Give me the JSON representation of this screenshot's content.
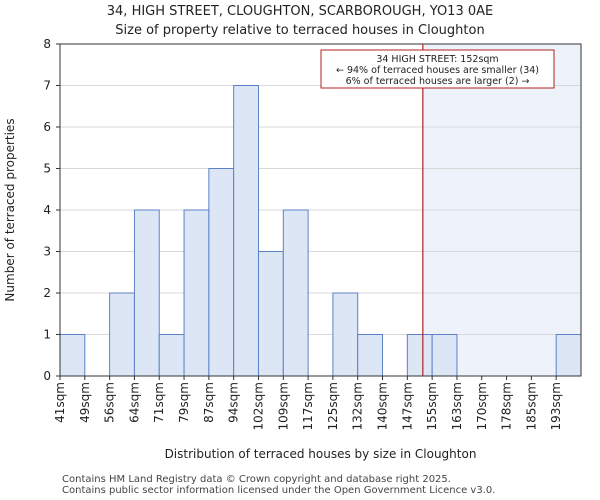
{
  "chart_data": {
    "type": "bar",
    "title": "34, HIGH STREET, CLOUGHTON, SCARBOROUGH, YO13 0AE",
    "subtitle": "Size of property relative to terraced houses in Cloughton",
    "xlabel": "Distribution of terraced houses by size in Cloughton",
    "ylabel": "Number of terraced properties",
    "categories": [
      "41sqm",
      "49sqm",
      "56sqm",
      "64sqm",
      "71sqm",
      "79sqm",
      "87sqm",
      "94sqm",
      "102sqm",
      "109sqm",
      "117sqm",
      "125sqm",
      "132sqm",
      "140sqm",
      "147sqm",
      "155sqm",
      "163sqm",
      "170sqm",
      "178sqm",
      "185sqm",
      "193sqm"
    ],
    "values": [
      1,
      0,
      2,
      4,
      1,
      4,
      5,
      7,
      3,
      4,
      0,
      2,
      1,
      0,
      1,
      1,
      0,
      0,
      0,
      0,
      1
    ],
    "ylim": [
      0,
      8
    ],
    "yticks": [
      0,
      1,
      2,
      3,
      4,
      5,
      6,
      7,
      8
    ],
    "marker": {
      "value_sqm": 152,
      "annotation": [
        "34 HIGH STREET: 152sqm",
        "← 94% of terraced houses are smaller (34)",
        "6% of terraced houses are larger (2) →"
      ]
    },
    "colors": {
      "bar_fill": "#dce6f5",
      "bar_stroke": "#5b82c8",
      "highlight_fill": "#eef3fb",
      "marker": "#b22222"
    }
  },
  "footer": {
    "line1": "Contains HM Land Registry data © Crown copyright and database right 2025.",
    "line2": "Contains public sector information licensed under the Open Government Licence v3.0."
  }
}
